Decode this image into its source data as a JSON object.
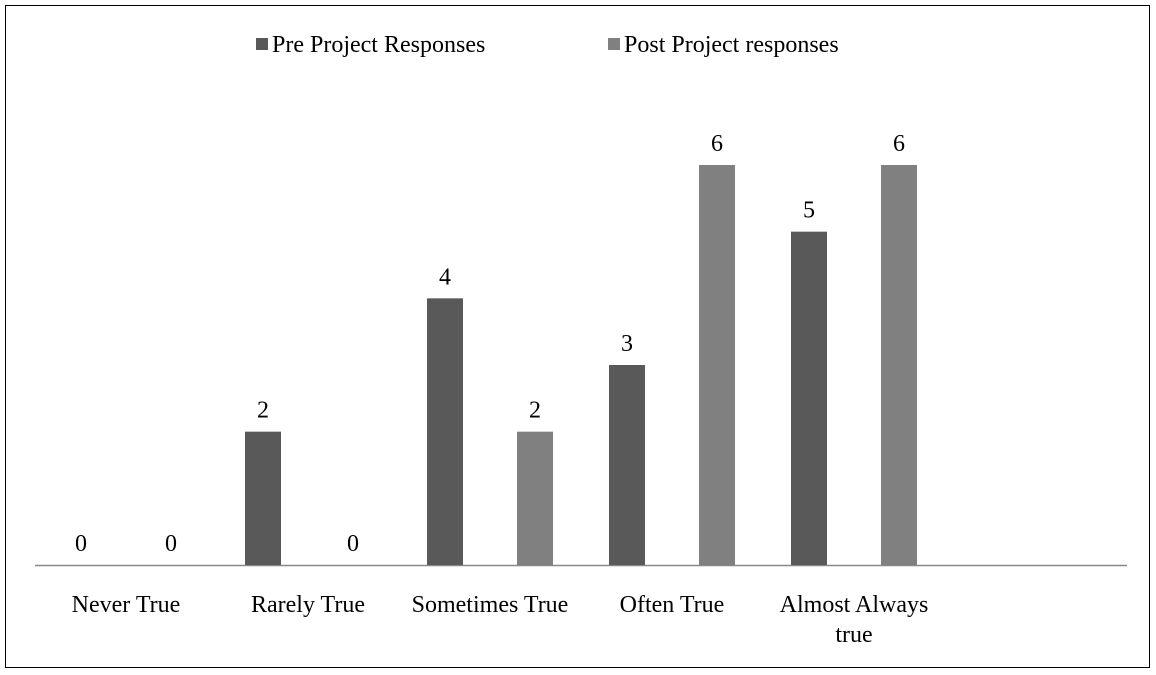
{
  "chart_data": {
    "type": "bar",
    "categories": [
      "Never True",
      "Rarely True",
      "Sometimes True",
      "Often True",
      "Almost Always true",
      null
    ],
    "series": [
      {
        "name": "Pre Project Responses",
        "color": "#595959",
        "values": [
          0,
          2,
          4,
          3,
          5,
          null
        ]
      },
      {
        "name": "Post Project responses",
        "color": "#808080",
        "values": [
          0,
          0,
          2,
          6,
          6,
          null
        ]
      }
    ],
    "legend": "top"
  }
}
